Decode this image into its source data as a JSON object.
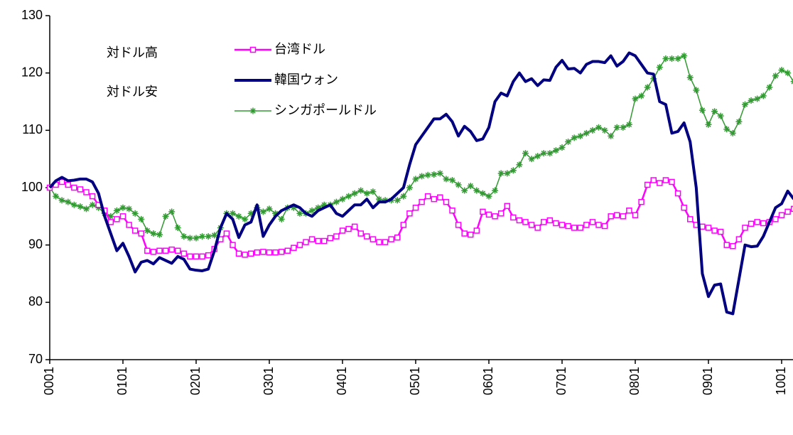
{
  "chart_data": {
    "type": "line",
    "annotations": [
      "対ドル高",
      "対ドル安"
    ],
    "categories": [
      "0001",
      null,
      null,
      null,
      null,
      null,
      null,
      null,
      null,
      null,
      null,
      null,
      "0101",
      null,
      null,
      null,
      null,
      null,
      null,
      null,
      null,
      null,
      null,
      null,
      "0201",
      null,
      null,
      null,
      null,
      null,
      null,
      null,
      null,
      null,
      null,
      null,
      "0301",
      null,
      null,
      null,
      null,
      null,
      null,
      null,
      null,
      null,
      null,
      null,
      "0401",
      null,
      null,
      null,
      null,
      null,
      null,
      null,
      null,
      null,
      null,
      null,
      "0501",
      null,
      null,
      null,
      null,
      null,
      null,
      null,
      null,
      null,
      null,
      null,
      "0601",
      null,
      null,
      null,
      null,
      null,
      null,
      null,
      null,
      null,
      null,
      null,
      "0701",
      null,
      null,
      null,
      null,
      null,
      null,
      null,
      null,
      null,
      null,
      null,
      "0801",
      null,
      null,
      null,
      null,
      null,
      null,
      null,
      null,
      null,
      null,
      null,
      "0901",
      null,
      null,
      null,
      null,
      null,
      null,
      null,
      null,
      null,
      null,
      null,
      "1001",
      null,
      null
    ],
    "series": [
      {
        "name": "台湾ドル",
        "color": "#ff00ff",
        "marker": "square",
        "values": [
          100,
          100.5,
          101,
          100.5,
          100,
          99.7,
          99.2,
          98.5,
          97,
          96,
          94,
          94.5,
          95,
          93.5,
          92.5,
          92,
          89,
          88.8,
          89,
          89,
          89.2,
          89,
          88.5,
          88,
          88,
          88,
          88.2,
          89.3,
          91,
          92,
          90,
          88.5,
          88.3,
          88.5,
          88.7,
          88.8,
          88.7,
          88.7,
          88.8,
          89,
          89.5,
          90,
          90.5,
          91,
          90.7,
          90.7,
          91.2,
          91.5,
          92.5,
          92.8,
          93.2,
          92,
          91.5,
          91,
          90.5,
          90.5,
          91,
          91.3,
          93.5,
          95.5,
          96.5,
          97.5,
          98.5,
          98,
          98.3,
          97.5,
          96,
          93.5,
          92,
          91.8,
          92.5,
          95.8,
          95.3,
          95,
          95.5,
          96.8,
          94.8,
          94.3,
          94,
          93.5,
          93,
          94,
          94.3,
          93.8,
          93.5,
          93.3,
          93,
          93,
          93.5,
          94,
          93.5,
          93.3,
          95,
          95.2,
          95,
          96,
          95.2,
          97.5,
          100.5,
          101.3,
          100.8,
          101.3,
          101,
          99,
          96.5,
          94.5,
          93.5,
          93.2,
          93,
          92.5,
          92.3,
          90,
          89.8,
          91,
          93,
          93.7,
          94,
          93.8,
          94,
          94.5,
          95.2,
          95.8,
          96.3
        ]
      },
      {
        "name": "韓国ウォン",
        "color": "#000080",
        "marker": "none",
        "values": [
          100,
          101.2,
          101.8,
          101.2,
          101.3,
          101.5,
          101.5,
          101,
          99,
          95,
          92,
          89,
          90.3,
          88,
          85.3,
          87,
          87.3,
          86.7,
          87.8,
          87.3,
          86.8,
          88,
          87.5,
          85.8,
          85.6,
          85.5,
          85.8,
          89,
          93,
          95.5,
          94.5,
          91.3,
          93.5,
          94,
          97,
          91.5,
          93.5,
          95,
          96,
          96.5,
          97,
          96.5,
          95.5,
          95,
          96,
          96.5,
          97,
          95.5,
          95,
          96,
          97,
          97,
          98,
          96.5,
          97.5,
          97.5,
          98,
          99,
          100,
          104,
          107.5,
          109,
          110.5,
          112,
          112,
          112.8,
          111.5,
          109,
          110.7,
          109.8,
          108.2,
          108.5,
          110.5,
          115,
          116.5,
          116,
          118.5,
          120,
          118.5,
          119,
          117.8,
          118.8,
          118.7,
          121,
          122.2,
          120.7,
          120.8,
          120,
          121.5,
          122,
          122,
          121.8,
          123,
          121.2,
          122,
          123.5,
          123,
          121.5,
          120,
          119.8,
          115,
          114.5,
          109.5,
          109.8,
          111.3,
          108,
          100,
          85,
          81,
          83,
          83.2,
          78.3,
          78,
          84,
          90,
          89.7,
          89.8,
          91.5,
          94,
          96.5,
          97.2,
          99.4,
          98
        ]
      },
      {
        "name": "シンガポールドル",
        "color": "#339933",
        "marker": "star",
        "values": [
          100,
          98.5,
          97.8,
          97.5,
          97,
          96.7,
          96.3,
          97,
          96.5,
          95.5,
          95,
          96,
          96.5,
          96.3,
          95.5,
          94.5,
          92.5,
          92,
          91.8,
          95,
          95.8,
          93,
          91.5,
          91.2,
          91.2,
          91.5,
          91.5,
          91.7,
          93,
          95.5,
          95.5,
          95,
          94.5,
          95.5,
          96.5,
          95.8,
          96.3,
          95.5,
          94.5,
          96.5,
          96.5,
          95.5,
          95.5,
          96,
          96.5,
          97,
          97,
          97.5,
          98,
          98.5,
          99,
          99.5,
          99,
          99.3,
          98,
          97.8,
          97.8,
          97.8,
          98.5,
          100,
          101.5,
          102,
          102.2,
          102.3,
          102.5,
          101.5,
          101.3,
          100.5,
          99.5,
          100.3,
          99.5,
          99,
          98.5,
          99.5,
          102.5,
          102.5,
          103,
          104,
          106,
          105,
          105.5,
          106,
          106,
          106.5,
          107,
          108,
          108.7,
          109,
          109.5,
          110,
          110.5,
          110,
          109,
          110.5,
          110.5,
          111,
          115.5,
          116,
          117.5,
          119,
          121,
          122.5,
          122.5,
          122.5,
          123,
          119.2,
          117,
          113.5,
          111,
          113.3,
          112.5,
          110.2,
          109.5,
          111.5,
          114.5,
          115.2,
          115.5,
          116,
          117.5,
          119.5,
          120.5,
          120,
          118.5
        ]
      }
    ],
    "ylim": [
      70,
      130
    ],
    "yticks": [
      70,
      80,
      90,
      100,
      110,
      120,
      130
    ],
    "grid": false
  }
}
